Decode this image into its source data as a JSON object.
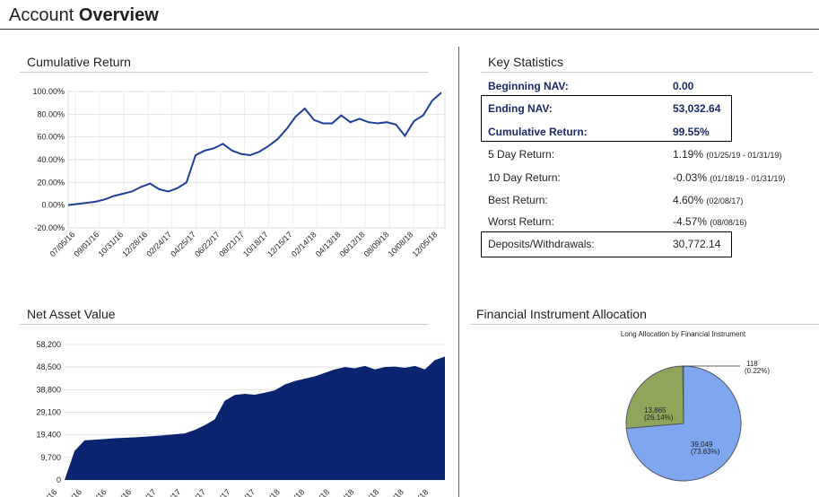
{
  "header": {
    "title_prefix": "Account",
    "title_bold": "Overview"
  },
  "cumulative_return": {
    "title": "Cumulative Return"
  },
  "net_asset_value": {
    "title": "Net Asset Value"
  },
  "key_statistics": {
    "title": "Key Statistics",
    "rows": [
      {
        "label": "Beginning NAV:",
        "value": "0.00",
        "range": ""
      },
      {
        "label": "Ending NAV:",
        "value": "53,032.64",
        "range": ""
      },
      {
        "label": "Cumulative Return:",
        "value": "99.55%",
        "range": ""
      },
      {
        "label": "5 Day Return:",
        "value": "1.19%",
        "range": "(01/25/19 - 01/31/19)"
      },
      {
        "label": "10 Day Return:",
        "value": "-0.03%",
        "range": "(01/18/19 - 01/31/19)"
      },
      {
        "label": "Best Return:",
        "value": "4.60%",
        "range": "(02/08/17)"
      },
      {
        "label": "Worst Return:",
        "value": "-4.57%",
        "range": "(08/08/16)"
      },
      {
        "label": "Deposits/Withdrawals:",
        "value": "30,772.14",
        "range": ""
      }
    ]
  },
  "allocation": {
    "title": "Financial Instrument Allocation",
    "subtitle": "Long Allocation by Financial Instrument"
  },
  "colors": {
    "line": "#1f3f99",
    "area": "#0b2470",
    "pie_blue": "#7fa7f0",
    "pie_green": "#8fa65a",
    "pie_gray": "#cccccc"
  },
  "chart_data": [
    {
      "type": "line",
      "title": "Cumulative Return",
      "y_ticks": [
        "100.00%",
        "80.00%",
        "60.00%",
        "40.00%",
        "20.00%",
        "0.00%",
        "-20.00%"
      ],
      "x_ticks": [
        "07/05/16",
        "09/01/16",
        "10/31/16",
        "12/28/16",
        "02/24/17",
        "04/25/17",
        "06/22/17",
        "08/21/17",
        "10/18/17",
        "12/15/17",
        "02/14/18",
        "04/13/18",
        "06/12/18",
        "08/09/18",
        "10/08/18",
        "12/05/18"
      ],
      "ylim": [
        -20,
        100
      ],
      "y_values": [
        0,
        1,
        2,
        3,
        5,
        8,
        10,
        12,
        16,
        19,
        14,
        12,
        15,
        20,
        44,
        48,
        50,
        54,
        48,
        45,
        44,
        47,
        52,
        58,
        67,
        78,
        85,
        75,
        72,
        72,
        79,
        73,
        76,
        73,
        72,
        73,
        71,
        61,
        74,
        79,
        92,
        99
      ],
      "grid": true
    },
    {
      "type": "area",
      "title": "Net Asset Value",
      "y_ticks": [
        "58,200",
        "48,500",
        "38,800",
        "29,100",
        "19,400",
        "9,700",
        "0"
      ],
      "x_tick_fragments": [
        "/16",
        "/16",
        "/16",
        "/16",
        "/17",
        "/17",
        "/17",
        "/17",
        "/17",
        "/18",
        "/18",
        "/18",
        "/18",
        "/18",
        "/18",
        "/18"
      ],
      "ylim": [
        0,
        58200
      ],
      "y_values": [
        0,
        12500,
        17000,
        17300,
        17600,
        17900,
        18100,
        18300,
        18600,
        18900,
        19200,
        19600,
        20000,
        21500,
        23500,
        26000,
        34000,
        36500,
        37000,
        36600,
        37500,
        38500,
        41000,
        42500,
        43500,
        44500,
        46000,
        47500,
        48500,
        48000,
        49000,
        47500,
        48500,
        48700,
        48200,
        49000,
        47500,
        51500,
        53000
      ],
      "grid": true
    },
    {
      "type": "pie",
      "title": "Long Allocation by Financial Instrument",
      "slices": [
        {
          "value": 39049,
          "label": "39,049",
          "pct": "(73.63%)"
        },
        {
          "value": 13865,
          "label": "13,865",
          "pct": "(26.14%)"
        },
        {
          "value": 118,
          "label": "118",
          "pct": "(0.22%)"
        }
      ]
    }
  ]
}
